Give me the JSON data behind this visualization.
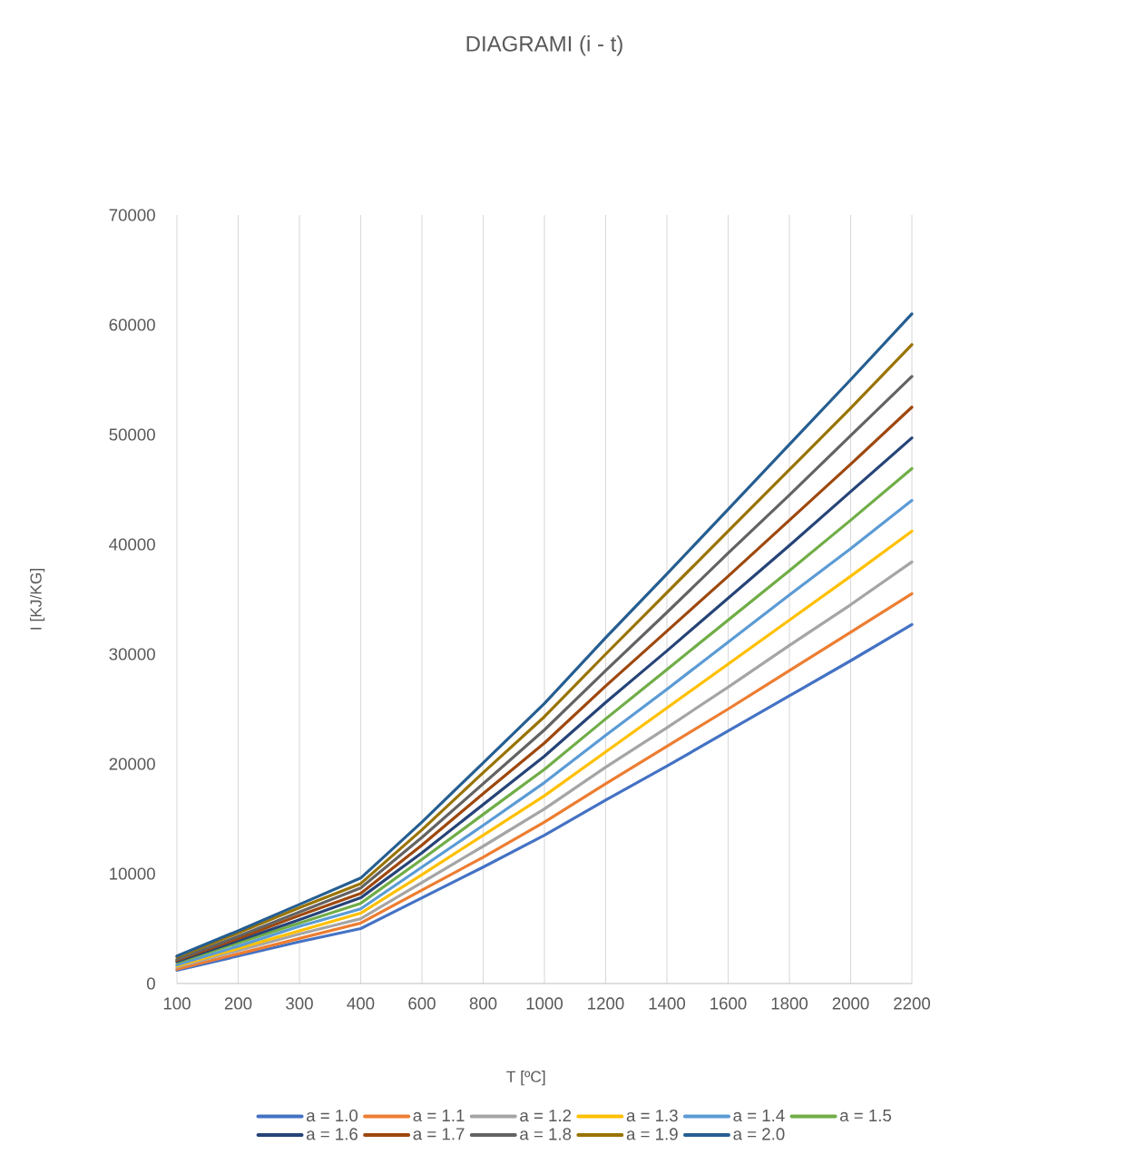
{
  "chart_data": {
    "type": "line",
    "title": "DIAGRAMI (i - t)",
    "xlabel": "T [ºC]",
    "ylabel": "I [KJ/KG]",
    "categories": [
      "100",
      "200",
      "300",
      "400",
      "600",
      "800",
      "1000",
      "1200",
      "1400",
      "1600",
      "1800",
      "2000",
      "2200"
    ],
    "ylim": [
      0,
      70000
    ],
    "yticks": [
      0,
      10000,
      20000,
      30000,
      40000,
      50000,
      60000,
      70000
    ],
    "grid": "x",
    "legend": "bottom",
    "series": [
      {
        "name": "a = 1.0",
        "color": "#4472c4",
        "values": [
          1200,
          2500,
          3800,
          5000,
          7800,
          10600,
          13500,
          16700,
          19800,
          23000,
          26200,
          29400,
          32700
        ]
      },
      {
        "name": "a = 1.1",
        "color": "#ed7d31",
        "values": [
          1300,
          2700,
          4100,
          5500,
          8500,
          11500,
          14700,
          18200,
          21600,
          25000,
          28500,
          32000,
          35500
        ]
      },
      {
        "name": "a = 1.2",
        "color": "#a5a5a5",
        "values": [
          1500,
          3000,
          4500,
          5900,
          9200,
          12500,
          15900,
          19700,
          23300,
          27000,
          30800,
          34500,
          38400
        ]
      },
      {
        "name": "a = 1.3",
        "color": "#ffc000",
        "values": [
          1600,
          3200,
          4800,
          6400,
          9900,
          13500,
          17100,
          21100,
          25100,
          29100,
          33100,
          37100,
          41200
        ]
      },
      {
        "name": "a = 1.4",
        "color": "#5b9bd5",
        "values": [
          1700,
          3400,
          5200,
          6800,
          10600,
          14400,
          18300,
          22600,
          26800,
          31100,
          35400,
          39600,
          44000
        ]
      },
      {
        "name": "a = 1.5",
        "color": "#70ad47",
        "values": [
          1900,
          3700,
          5500,
          7300,
          11300,
          15400,
          19500,
          24100,
          28600,
          33100,
          37600,
          42200,
          46900
        ]
      },
      {
        "name": "a = 1.6",
        "color": "#264478",
        "values": [
          2000,
          3900,
          5800,
          7800,
          11900,
          16300,
          20700,
          25600,
          30300,
          35100,
          39900,
          44800,
          49700
        ]
      },
      {
        "name": "a = 1.7",
        "color": "#9e480e",
        "values": [
          2100,
          4100,
          6200,
          8200,
          12600,
          17300,
          21900,
          27100,
          32100,
          37100,
          42200,
          47300,
          52500
        ]
      },
      {
        "name": "a = 1.8",
        "color": "#636363",
        "values": [
          2200,
          4300,
          6500,
          8700,
          13300,
          18200,
          23100,
          28500,
          33800,
          39200,
          44500,
          49900,
          55300
        ]
      },
      {
        "name": "a = 1.9",
        "color": "#997300",
        "values": [
          2400,
          4600,
          6900,
          9100,
          14000,
          19200,
          24300,
          30000,
          35600,
          41200,
          46800,
          52400,
          58200
        ]
      },
      {
        "name": "a = 2.0",
        "color": "#255e91",
        "values": [
          2500,
          4800,
          7200,
          9600,
          14700,
          20100,
          25500,
          31500,
          37300,
          43200,
          49100,
          55000,
          61000
        ]
      }
    ]
  }
}
